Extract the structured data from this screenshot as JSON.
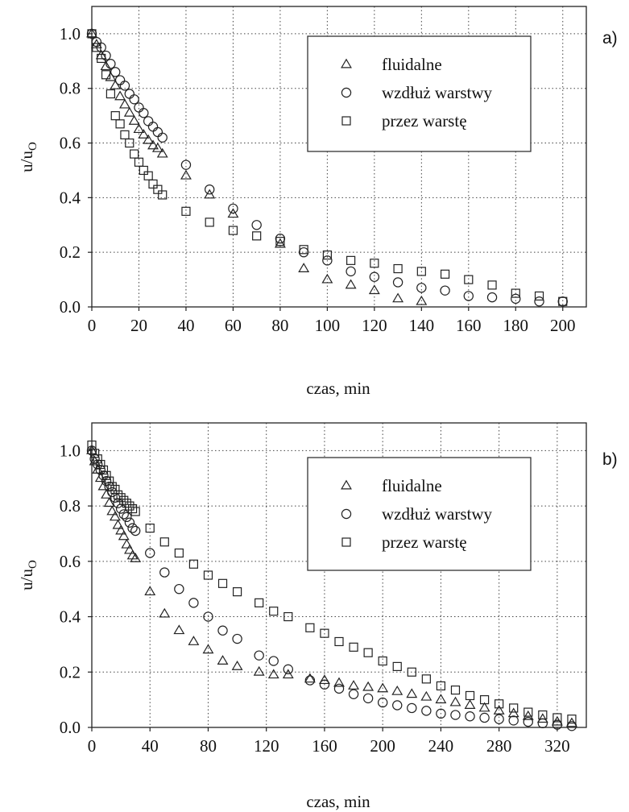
{
  "chart_data": [
    {
      "panel_label": "a)",
      "type": "scatter",
      "xlabel": "czas, min",
      "ylabel_main": "u/u",
      "ylabel_sub": "O",
      "xlim": [
        0,
        210
      ],
      "ylim": [
        0,
        1.1
      ],
      "xticks": [
        0,
        20,
        40,
        60,
        80,
        100,
        120,
        140,
        160,
        180,
        200
      ],
      "yticks": [
        "0.0",
        "0.2",
        "0.4",
        "0.6",
        "0.8",
        "1.0"
      ],
      "grid": true,
      "legend_position": "top-right",
      "series": [
        {
          "name": "fluidalne",
          "marker": "triangle",
          "points": [
            [
              0,
              1.0
            ],
            [
              2,
              0.96
            ],
            [
              4,
              0.92
            ],
            [
              6,
              0.88
            ],
            [
              8,
              0.84
            ],
            [
              10,
              0.81
            ],
            [
              12,
              0.77
            ],
            [
              14,
              0.74
            ],
            [
              16,
              0.71
            ],
            [
              18,
              0.68
            ],
            [
              20,
              0.65
            ],
            [
              22,
              0.63
            ],
            [
              24,
              0.61
            ],
            [
              26,
              0.59
            ],
            [
              28,
              0.58
            ],
            [
              30,
              0.56
            ],
            [
              40,
              0.48
            ],
            [
              50,
              0.41
            ],
            [
              60,
              0.34
            ],
            [
              80,
              0.23
            ],
            [
              90,
              0.14
            ],
            [
              100,
              0.1
            ],
            [
              110,
              0.08
            ],
            [
              120,
              0.06
            ],
            [
              130,
              0.03
            ],
            [
              140,
              0.02
            ]
          ]
        },
        {
          "name": "wzdłuż warstwy",
          "marker": "circle",
          "points": [
            [
              0,
              1.0
            ],
            [
              2,
              0.97
            ],
            [
              4,
              0.95
            ],
            [
              6,
              0.92
            ],
            [
              8,
              0.89
            ],
            [
              10,
              0.86
            ],
            [
              12,
              0.83
            ],
            [
              14,
              0.81
            ],
            [
              16,
              0.78
            ],
            [
              18,
              0.76
            ],
            [
              20,
              0.73
            ],
            [
              22,
              0.71
            ],
            [
              24,
              0.68
            ],
            [
              26,
              0.66
            ],
            [
              28,
              0.64
            ],
            [
              30,
              0.62
            ],
            [
              40,
              0.52
            ],
            [
              50,
              0.43
            ],
            [
              60,
              0.36
            ],
            [
              70,
              0.3
            ],
            [
              80,
              0.25
            ],
            [
              90,
              0.2
            ],
            [
              100,
              0.17
            ],
            [
              110,
              0.13
            ],
            [
              120,
              0.11
            ],
            [
              130,
              0.09
            ],
            [
              140,
              0.07
            ],
            [
              150,
              0.06
            ],
            [
              160,
              0.04
            ],
            [
              170,
              0.035
            ],
            [
              180,
              0.03
            ],
            [
              190,
              0.02
            ],
            [
              200,
              0.02
            ]
          ]
        },
        {
          "name": "przez warstę",
          "marker": "square",
          "points": [
            [
              0,
              1.0
            ],
            [
              2,
              0.95
            ],
            [
              4,
              0.91
            ],
            [
              6,
              0.85
            ],
            [
              8,
              0.78
            ],
            [
              10,
              0.7
            ],
            [
              12,
              0.67
            ],
            [
              14,
              0.63
            ],
            [
              16,
              0.6
            ],
            [
              18,
              0.56
            ],
            [
              20,
              0.53
            ],
            [
              22,
              0.5
            ],
            [
              24,
              0.48
            ],
            [
              26,
              0.45
            ],
            [
              28,
              0.43
            ],
            [
              30,
              0.41
            ],
            [
              40,
              0.35
            ],
            [
              50,
              0.31
            ],
            [
              60,
              0.28
            ],
            [
              70,
              0.26
            ],
            [
              80,
              0.24
            ],
            [
              90,
              0.21
            ],
            [
              100,
              0.19
            ],
            [
              110,
              0.17
            ],
            [
              120,
              0.16
            ],
            [
              130,
              0.14
            ],
            [
              140,
              0.13
            ],
            [
              150,
              0.12
            ],
            [
              160,
              0.1
            ],
            [
              170,
              0.08
            ],
            [
              180,
              0.05
            ],
            [
              190,
              0.04
            ],
            [
              200,
              0.02
            ]
          ]
        }
      ]
    },
    {
      "panel_label": "b)",
      "type": "scatter",
      "xlabel": "czas, min",
      "ylabel_main": "u/u",
      "ylabel_sub": "O",
      "xlim": [
        0,
        340
      ],
      "ylim": [
        0,
        1.1
      ],
      "xticks": [
        0,
        40,
        80,
        120,
        160,
        200,
        240,
        280,
        320
      ],
      "yticks": [
        "0.0",
        "0.2",
        "0.4",
        "0.6",
        "0.8",
        "1.0"
      ],
      "grid": true,
      "legend_position": "top-right",
      "series": [
        {
          "name": "fluidalne",
          "marker": "triangle",
          "points": [
            [
              0,
              1.0
            ],
            [
              2,
              0.96
            ],
            [
              4,
              0.93
            ],
            [
              6,
              0.9
            ],
            [
              8,
              0.87
            ],
            [
              10,
              0.84
            ],
            [
              12,
              0.81
            ],
            [
              14,
              0.78
            ],
            [
              16,
              0.76
            ],
            [
              18,
              0.73
            ],
            [
              20,
              0.71
            ],
            [
              22,
              0.69
            ],
            [
              24,
              0.66
            ],
            [
              26,
              0.64
            ],
            [
              28,
              0.62
            ],
            [
              30,
              0.61
            ],
            [
              40,
              0.49
            ],
            [
              50,
              0.41
            ],
            [
              60,
              0.35
            ],
            [
              70,
              0.31
            ],
            [
              80,
              0.28
            ],
            [
              90,
              0.24
            ],
            [
              100,
              0.22
            ],
            [
              115,
              0.2
            ],
            [
              125,
              0.19
            ],
            [
              135,
              0.19
            ],
            [
              150,
              0.175
            ],
            [
              160,
              0.17
            ],
            [
              170,
              0.16
            ],
            [
              180,
              0.15
            ],
            [
              190,
              0.145
            ],
            [
              200,
              0.14
            ],
            [
              210,
              0.13
            ],
            [
              220,
              0.12
            ],
            [
              230,
              0.11
            ],
            [
              240,
              0.1
            ],
            [
              250,
              0.09
            ],
            [
              260,
              0.08
            ],
            [
              270,
              0.07
            ],
            [
              280,
              0.06
            ],
            [
              290,
              0.05
            ],
            [
              300,
              0.04
            ],
            [
              310,
              0.03
            ],
            [
              320,
              0.02
            ],
            [
              330,
              0.015
            ]
          ]
        },
        {
          "name": "wzdłuż warstwy",
          "marker": "circle",
          "points": [
            [
              0,
              1.0
            ],
            [
              2,
              0.97
            ],
            [
              4,
              0.95
            ],
            [
              6,
              0.93
            ],
            [
              8,
              0.91
            ],
            [
              10,
              0.89
            ],
            [
              12,
              0.87
            ],
            [
              14,
              0.85
            ],
            [
              16,
              0.83
            ],
            [
              18,
              0.81
            ],
            [
              20,
              0.79
            ],
            [
              22,
              0.77
            ],
            [
              24,
              0.76
            ],
            [
              26,
              0.74
            ],
            [
              28,
              0.72
            ],
            [
              30,
              0.71
            ],
            [
              40,
              0.63
            ],
            [
              50,
              0.56
            ],
            [
              60,
              0.5
            ],
            [
              70,
              0.45
            ],
            [
              80,
              0.4
            ],
            [
              90,
              0.35
            ],
            [
              100,
              0.32
            ],
            [
              115,
              0.26
            ],
            [
              125,
              0.24
            ],
            [
              135,
              0.21
            ],
            [
              150,
              0.17
            ],
            [
              160,
              0.155
            ],
            [
              170,
              0.14
            ],
            [
              180,
              0.12
            ],
            [
              190,
              0.105
            ],
            [
              200,
              0.09
            ],
            [
              210,
              0.08
            ],
            [
              220,
              0.07
            ],
            [
              230,
              0.06
            ],
            [
              240,
              0.05
            ],
            [
              250,
              0.045
            ],
            [
              260,
              0.04
            ],
            [
              270,
              0.035
            ],
            [
              280,
              0.03
            ],
            [
              290,
              0.025
            ],
            [
              300,
              0.02
            ],
            [
              310,
              0.015
            ],
            [
              320,
              0.01
            ],
            [
              330,
              0.005
            ]
          ]
        },
        {
          "name": "przez warstę",
          "marker": "square",
          "points": [
            [
              0,
              1.02
            ],
            [
              2,
              0.99
            ],
            [
              4,
              0.97
            ],
            [
              6,
              0.95
            ],
            [
              8,
              0.93
            ],
            [
              10,
              0.91
            ],
            [
              12,
              0.89
            ],
            [
              14,
              0.87
            ],
            [
              16,
              0.86
            ],
            [
              18,
              0.84
            ],
            [
              20,
              0.83
            ],
            [
              22,
              0.82
            ],
            [
              24,
              0.81
            ],
            [
              26,
              0.8
            ],
            [
              28,
              0.79
            ],
            [
              30,
              0.78
            ],
            [
              40,
              0.72
            ],
            [
              50,
              0.67
            ],
            [
              60,
              0.63
            ],
            [
              70,
              0.59
            ],
            [
              80,
              0.55
            ],
            [
              90,
              0.52
            ],
            [
              100,
              0.49
            ],
            [
              115,
              0.45
            ],
            [
              125,
              0.42
            ],
            [
              135,
              0.4
            ],
            [
              150,
              0.36
            ],
            [
              160,
              0.34
            ],
            [
              170,
              0.31
            ],
            [
              180,
              0.29
            ],
            [
              190,
              0.27
            ],
            [
              200,
              0.24
            ],
            [
              210,
              0.22
            ],
            [
              220,
              0.2
            ],
            [
              230,
              0.175
            ],
            [
              240,
              0.15
            ],
            [
              250,
              0.135
            ],
            [
              260,
              0.115
            ],
            [
              270,
              0.1
            ],
            [
              280,
              0.085
            ],
            [
              290,
              0.07
            ],
            [
              300,
              0.055
            ],
            [
              310,
              0.045
            ],
            [
              320,
              0.035
            ],
            [
              330,
              0.03
            ]
          ]
        }
      ]
    }
  ]
}
